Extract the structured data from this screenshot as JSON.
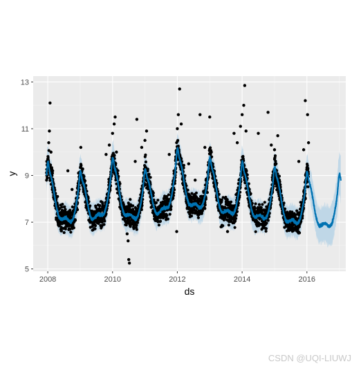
{
  "chart_data": {
    "type": "scatter",
    "title": "",
    "xlabel": "ds",
    "ylabel": "y",
    "xlim": [
      2007.55,
      2017.2
    ],
    "ylim": [
      4.9,
      13.25
    ],
    "x_ticks": [
      2008,
      2010,
      2012,
      2014,
      2016
    ],
    "x_tick_labels": [
      "2008",
      "2010",
      "2012",
      "2014",
      "2016"
    ],
    "y_ticks": [
      5,
      7,
      9,
      11,
      13
    ],
    "y_tick_labels": [
      "5",
      "7",
      "9",
      "11",
      "13"
    ],
    "grid": true,
    "background": "#ebebeb",
    "history_end": 2016.05,
    "forecast_end": 2017.05,
    "series": [
      {
        "kind": "observed-points",
        "color": "#000000",
        "points": [
          [
            2007.97,
            9.6
          ],
          [
            2008.0,
            9.7
          ],
          [
            2008.03,
            10.4
          ],
          [
            2008.05,
            10.9
          ],
          [
            2008.07,
            12.1
          ],
          [
            2008.1,
            10.0
          ],
          [
            2008.15,
            9.2
          ],
          [
            2008.3,
            8.1
          ],
          [
            2008.62,
            9.2
          ],
          [
            2008.75,
            8.4
          ],
          [
            2008.95,
            9.1
          ],
          [
            2009.02,
            10.2
          ],
          [
            2009.1,
            9.0
          ],
          [
            2009.5,
            7.2
          ],
          [
            2009.8,
            9.9
          ],
          [
            2009.9,
            10.3
          ],
          [
            2010.0,
            10.8
          ],
          [
            2010.05,
            11.2
          ],
          [
            2010.08,
            11.5
          ],
          [
            2010.12,
            10.0
          ],
          [
            2010.45,
            6.5
          ],
          [
            2010.48,
            6.2
          ],
          [
            2010.5,
            5.4
          ],
          [
            2010.52,
            5.25
          ],
          [
            2010.7,
            9.6
          ],
          [
            2010.75,
            11.4
          ],
          [
            2010.9,
            10.2
          ],
          [
            2011.0,
            10.5
          ],
          [
            2011.05,
            10.9
          ],
          [
            2011.6,
            7.6
          ],
          [
            2011.75,
            9.9
          ],
          [
            2011.95,
            9.8
          ],
          [
            2012.0,
            11.0
          ],
          [
            2012.03,
            11.6
          ],
          [
            2012.07,
            12.7
          ],
          [
            2012.12,
            11.2
          ],
          [
            2011.98,
            6.6
          ],
          [
            2012.35,
            9.5
          ],
          [
            2012.55,
            8.8
          ],
          [
            2012.7,
            11.6
          ],
          [
            2012.85,
            10.2
          ],
          [
            2013.0,
            11.5
          ],
          [
            2013.05,
            10.0
          ],
          [
            2013.35,
            6.8
          ],
          [
            2013.55,
            6.6
          ],
          [
            2013.75,
            10.8
          ],
          [
            2013.85,
            10.4
          ],
          [
            2013.95,
            11.1
          ],
          [
            2014.0,
            11.6
          ],
          [
            2014.05,
            12.0
          ],
          [
            2014.08,
            12.85
          ],
          [
            2014.12,
            10.9
          ],
          [
            2014.5,
            10.8
          ],
          [
            2014.8,
            11.7
          ],
          [
            2014.9,
            10.3
          ],
          [
            2015.0,
            10.1
          ],
          [
            2015.1,
            10.7
          ],
          [
            2015.5,
            6.9
          ],
          [
            2015.75,
            9.6
          ],
          [
            2015.9,
            10.1
          ],
          [
            2015.95,
            12.2
          ],
          [
            2016.02,
            11.6
          ],
          [
            2016.05,
            10.4
          ]
        ]
      },
      {
        "kind": "forecast-line",
        "color": "#0072b2"
      },
      {
        "kind": "uncertainty-band",
        "color": "#b7d4e6"
      }
    ]
  },
  "watermark": "CSDN @UQI-LIUWJ"
}
